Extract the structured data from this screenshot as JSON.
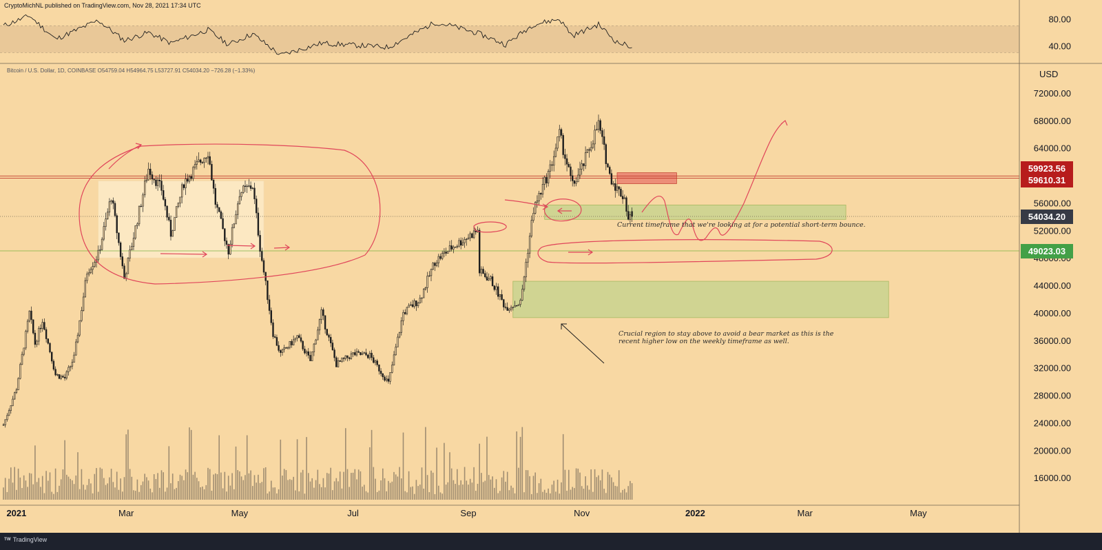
{
  "header": {
    "published": "CryptoMichNL published on TradingView.com, Nov 28, 2021 17:34 UTC",
    "symbol_line": "Bitcoin / U.S. Dollar, 1D, COINBASE O54759.04 H54964.75 L53727.91 C54034.20 −726.28 (−1.33%)"
  },
  "footer": {
    "brand": "TradingView",
    "logo": "tradingview-logo-icon"
  },
  "annotations": {
    "short_term": "Current timeframe that we're looking at for a potential short-term bounce.",
    "crucial_region": "Crucial region to stay above to avoid a bear market as this is the recent higher low on the weekly timeframe as well."
  },
  "colors": {
    "background": "#f8d8a3",
    "candle": "#1f1f1f",
    "volume": "#8a7a64",
    "drawing": "#e0455a",
    "resistance_zone": "#e8766a",
    "support_zone": "#c9d38f",
    "red_label": "#b71c1c",
    "green_label": "#43a047",
    "dark_label": "#363a45"
  },
  "chart_data": {
    "type": "candlestick",
    "title": "Bitcoin / U.S. Dollar, 1D, COINBASE",
    "currency_label": "USD",
    "ylim": [
      12000,
      74000
    ],
    "y_ticks": [
      72000,
      68000,
      64000,
      60000,
      56000,
      52000,
      48000,
      44000,
      40000,
      36000,
      32000,
      28000,
      24000,
      20000,
      16000
    ],
    "x_ticks": [
      "2021",
      "Mar",
      "May",
      "Jul",
      "Sep",
      "Nov",
      "2022",
      "Mar",
      "May"
    ],
    "date_range": [
      "2020-12-25",
      "2021-11-28"
    ],
    "last": {
      "open": 54759.04,
      "high": 54964.75,
      "low": 53727.91,
      "close": 54034.2,
      "change": -726.28,
      "change_pct": -1.33
    },
    "price_path": [
      [
        "2020-12-25",
        23700
      ],
      [
        "2021-01-01",
        29000
      ],
      [
        "2021-01-08",
        40000
      ],
      [
        "2021-01-11",
        35500
      ],
      [
        "2021-01-15",
        39000
      ],
      [
        "2021-01-22",
        31000
      ],
      [
        "2021-01-27",
        30500
      ],
      [
        "2021-02-01",
        33500
      ],
      [
        "2021-02-08",
        46000
      ],
      [
        "2021-02-14",
        48500
      ],
      [
        "2021-02-21",
        57000
      ],
      [
        "2021-02-28",
        45000
      ],
      [
        "2021-03-13",
        61000
      ],
      [
        "2021-03-20",
        58000
      ],
      [
        "2021-03-25",
        51500
      ],
      [
        "2021-04-01",
        59000
      ],
      [
        "2021-04-14",
        63500
      ],
      [
        "2021-04-18",
        56000
      ],
      [
        "2021-04-25",
        49000
      ],
      [
        "2021-05-01",
        57500
      ],
      [
        "2021-05-08",
        58500
      ],
      [
        "2021-05-12",
        49500
      ],
      [
        "2021-05-19",
        37000
      ],
      [
        "2021-05-23",
        34000
      ],
      [
        "2021-06-01",
        36500
      ],
      [
        "2021-06-08",
        33000
      ],
      [
        "2021-06-14",
        40000
      ],
      [
        "2021-06-22",
        32500
      ],
      [
        "2021-07-01",
        34000
      ],
      [
        "2021-07-10",
        33800
      ],
      [
        "2021-07-20",
        29800
      ],
      [
        "2021-07-28",
        40000
      ],
      [
        "2021-08-06",
        42000
      ],
      [
        "2021-08-14",
        47500
      ],
      [
        "2021-08-23",
        49500
      ],
      [
        "2021-09-06",
        52000
      ],
      [
        "2021-09-07",
        46000
      ],
      [
        "2021-09-13",
        44800
      ],
      [
        "2021-09-21",
        40800
      ],
      [
        "2021-09-29",
        41500
      ],
      [
        "2021-10-06",
        55000
      ],
      [
        "2021-10-15",
        61000
      ],
      [
        "2021-10-20",
        66000
      ],
      [
        "2021-10-27",
        58500
      ],
      [
        "2021-11-01",
        61000
      ],
      [
        "2021-11-10",
        67500
      ],
      [
        "2021-11-16",
        60000
      ],
      [
        "2021-11-20",
        58000
      ],
      [
        "2021-11-24",
        56800
      ],
      [
        "2021-11-26",
        53600
      ],
      [
        "2021-11-28",
        54034
      ]
    ],
    "rsi": {
      "ticks": [
        80,
        40
      ],
      "band": [
        30,
        70
      ],
      "path": [
        [
          "2020-12-25",
          70
        ],
        [
          "2021-01-08",
          85
        ],
        [
          "2021-01-22",
          50
        ],
        [
          "2021-02-01",
          62
        ],
        [
          "2021-02-14",
          78
        ],
        [
          "2021-02-28",
          48
        ],
        [
          "2021-03-13",
          60
        ],
        [
          "2021-03-25",
          44
        ],
        [
          "2021-04-14",
          64
        ],
        [
          "2021-04-25",
          42
        ],
        [
          "2021-05-08",
          58
        ],
        [
          "2021-05-23",
          26
        ],
        [
          "2021-06-14",
          44
        ],
        [
          "2021-07-20",
          38
        ],
        [
          "2021-08-14",
          75
        ],
        [
          "2021-08-23",
          70
        ],
        [
          "2021-09-07",
          58
        ],
        [
          "2021-09-21",
          42
        ],
        [
          "2021-10-06",
          72
        ],
        [
          "2021-10-20",
          80
        ],
        [
          "2021-10-27",
          55
        ],
        [
          "2021-11-10",
          72
        ],
        [
          "2021-11-20",
          45
        ],
        [
          "2021-11-28",
          39
        ]
      ]
    },
    "price_labels": [
      {
        "value": "59923.56",
        "price": 59923.56,
        "style": "red"
      },
      {
        "value": "59610.31",
        "price": 59610.31,
        "style": "red"
      },
      {
        "value": "54034.20",
        "price": 54034.2,
        "style": "dark"
      },
      {
        "value": "49023.03",
        "price": 49023.03,
        "style": "green"
      }
    ],
    "horizontal_lines": [
      {
        "price": 59923.56,
        "style": "red"
      },
      {
        "price": 59610.31,
        "style": "red"
      },
      {
        "price": 54034.2,
        "style": "dotted"
      },
      {
        "price": 49023.03,
        "style": "green"
      }
    ],
    "zones": [
      {
        "name": "range",
        "start": "2021-02-14",
        "end": "2021-05-14",
        "low": 48000,
        "high": 59200,
        "style": "light"
      },
      {
        "name": "resistance",
        "start": "2021-11-20",
        "end": "2021-12-22",
        "low": 58800,
        "high": 60400,
        "style": "red"
      },
      {
        "name": "short-term-support",
        "start": "2021-10-12",
        "end": "2022-03-23",
        "low": 53600,
        "high": 55700,
        "style": "green"
      },
      {
        "name": "crucial-support",
        "start": "2021-09-25",
        "end": "2022-04-15",
        "low": 39300,
        "high": 44600,
        "style": "green"
      }
    ]
  }
}
